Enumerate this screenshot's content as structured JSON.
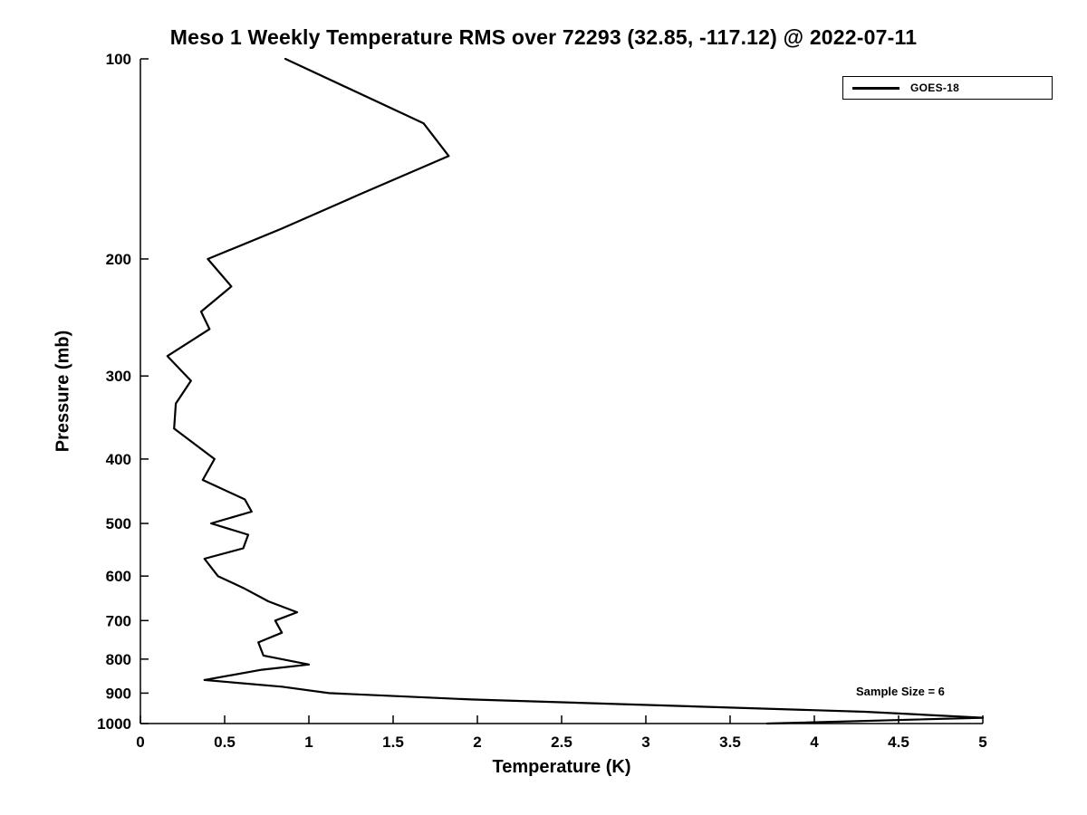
{
  "chart_data": {
    "type": "line",
    "title": "Meso 1 Weekly Temperature RMS over 72293 (32.85, -117.12) @ 2022-07-11",
    "xlabel": "Temperature (K)",
    "ylabel": "Pressure (mb)",
    "xlim": [
      0,
      5
    ],
    "ylim": [
      100,
      1000
    ],
    "y_scale": "log",
    "y_inverted": true,
    "grid": false,
    "xticks": [
      0,
      0.5,
      1,
      1.5,
      2,
      2.5,
      3,
      3.5,
      4,
      4.5,
      5
    ],
    "yticks": [
      100,
      200,
      300,
      400,
      500,
      600,
      700,
      800,
      900,
      1000
    ],
    "legend_position": "top-right",
    "annotation": "Sample Size = 6",
    "line_color": "#000000",
    "series": [
      {
        "name": "GOES-18",
        "color": "#000000",
        "points_format": "[pressure_mb, rms_K]",
        "points": [
          [
            100,
            0.86
          ],
          [
            125,
            1.68
          ],
          [
            140,
            1.83
          ],
          [
            160,
            1.3
          ],
          [
            180,
            0.84
          ],
          [
            200,
            0.4
          ],
          [
            220,
            0.54
          ],
          [
            240,
            0.36
          ],
          [
            255,
            0.41
          ],
          [
            280,
            0.16
          ],
          [
            305,
            0.3
          ],
          [
            330,
            0.21
          ],
          [
            360,
            0.2
          ],
          [
            400,
            0.44
          ],
          [
            430,
            0.37
          ],
          [
            460,
            0.62
          ],
          [
            480,
            0.66
          ],
          [
            500,
            0.42
          ],
          [
            520,
            0.64
          ],
          [
            545,
            0.61
          ],
          [
            565,
            0.38
          ],
          [
            600,
            0.46
          ],
          [
            625,
            0.61
          ],
          [
            655,
            0.76
          ],
          [
            680,
            0.93
          ],
          [
            700,
            0.8
          ],
          [
            730,
            0.84
          ],
          [
            755,
            0.7
          ],
          [
            790,
            0.73
          ],
          [
            815,
            1.0
          ],
          [
            830,
            0.72
          ],
          [
            860,
            0.38
          ],
          [
            880,
            0.84
          ],
          [
            900,
            1.12
          ],
          [
            920,
            1.96
          ],
          [
            960,
            4.3
          ],
          [
            980,
            5.0
          ],
          [
            1000,
            3.72
          ]
        ]
      }
    ]
  },
  "legend": {
    "entries": [
      {
        "label": "GOES-18",
        "color": "#000000"
      }
    ]
  }
}
